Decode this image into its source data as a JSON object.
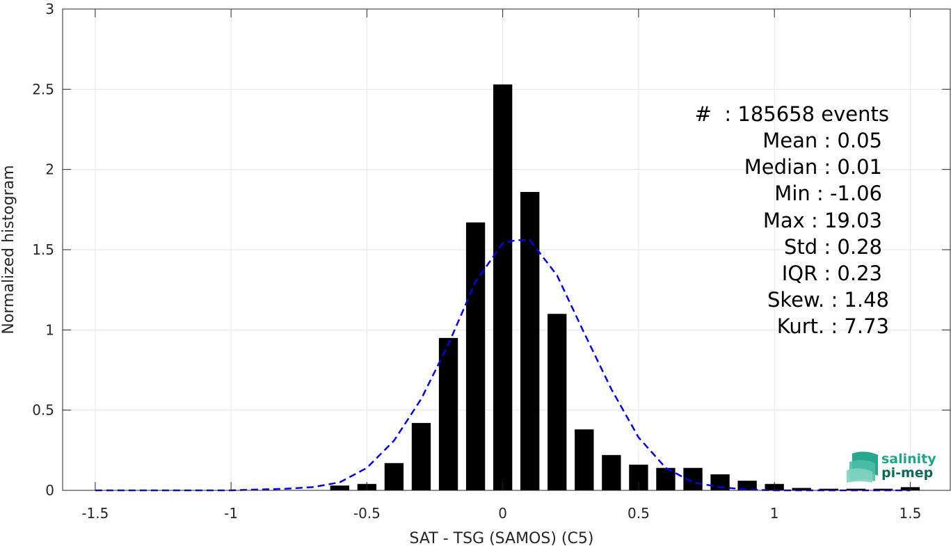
{
  "chart_data": {
    "type": "bar",
    "title": "",
    "xlabel": "SAT - TSG (SAMOS) (C5)",
    "ylabel": "Normalized histogram",
    "xlim": [
      -1.62,
      1.65
    ],
    "ylim": [
      0,
      3
    ],
    "xticks": [
      -1.5,
      -1,
      -0.5,
      0,
      0.5,
      1,
      1.5
    ],
    "xtick_labels": [
      "-1.5",
      "-1",
      "-0.5",
      "0",
      "0.5",
      "1",
      "1.5"
    ],
    "yticks": [
      0,
      0.5,
      1,
      1.5,
      2,
      2.5,
      3
    ],
    "ytick_labels": [
      "0",
      "0.5",
      "1",
      "1.5",
      "2",
      "2.5",
      "3"
    ],
    "grid": true,
    "bar_color": "#000000",
    "bar_width": 0.07,
    "bars": {
      "x": [
        -0.6,
        -0.5,
        -0.4,
        -0.3,
        -0.2,
        -0.1,
        0.0,
        0.1,
        0.2,
        0.3,
        0.4,
        0.5,
        0.6,
        0.7,
        0.8,
        0.9,
        1.0,
        1.1,
        1.2,
        1.3,
        1.4,
        1.5
      ],
      "values": [
        0.03,
        0.04,
        0.17,
        0.42,
        0.95,
        1.67,
        2.53,
        1.86,
        1.1,
        0.38,
        0.22,
        0.16,
        0.14,
        0.14,
        0.1,
        0.06,
        0.04,
        0.015,
        0.01,
        0.01,
        0.01,
        0.02
      ]
    },
    "fit_curve": {
      "style": "dashed",
      "color": "#0000ee",
      "x": [
        -1.5,
        -1.4,
        -1.3,
        -1.2,
        -1.1,
        -1.0,
        -0.9,
        -0.8,
        -0.7,
        -0.6,
        -0.5,
        -0.4,
        -0.3,
        -0.2,
        -0.1,
        0.0,
        0.05,
        0.1,
        0.2,
        0.3,
        0.4,
        0.5,
        0.6,
        0.7,
        0.8,
        0.9,
        1.0,
        1.1,
        1.2,
        1.3,
        1.4,
        1.5
      ],
      "y": [
        0.0,
        0.0,
        0.0,
        0.0,
        0.0,
        0.0,
        0.005,
        0.01,
        0.02,
        0.05,
        0.14,
        0.31,
        0.57,
        0.91,
        1.3,
        1.54,
        1.56,
        1.56,
        1.34,
        0.98,
        0.63,
        0.33,
        0.14,
        0.05,
        0.02,
        0.005,
        0.0,
        0.0,
        0.0,
        0.0,
        0.0,
        0.0
      ]
    },
    "annotations": {
      "count": "#  : 185658 events",
      "mean": "Mean : 0.05",
      "median": "Median : 0.01",
      "min": "Min : -1.06",
      "max": "Max : 19.03",
      "std": "Std : 0.28",
      "iqr": "IQR : 0.23",
      "skew": "Skew. : 1.48",
      "kurt": "Kurt. : 7.73"
    }
  },
  "logo": {
    "line1": "salinity",
    "line2": "pi-mep",
    "color1": "#1fa58a",
    "color2": "#0e6b5a"
  }
}
